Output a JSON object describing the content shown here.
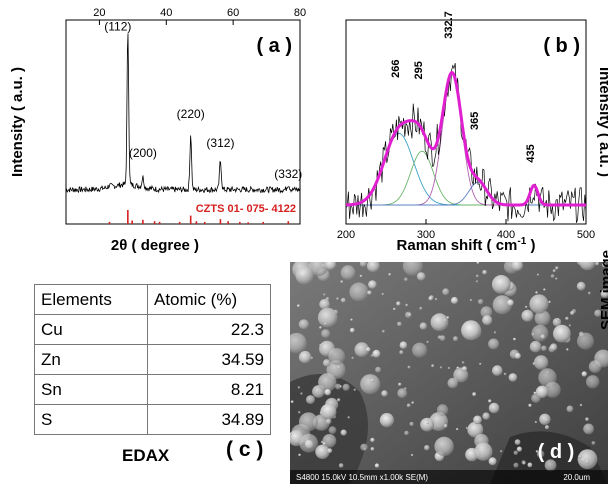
{
  "panel_a": {
    "label": "( a )",
    "ylabel": "Intensity ( a.u. )",
    "xlabel": "2θ ( degree )",
    "xticks": [
      "20",
      "40",
      "60",
      "80"
    ],
    "peaks": [
      "(112)",
      "(200)",
      "(220)",
      "(312)",
      "(332)"
    ],
    "reference_label": "CZTS 01- 075- 4122",
    "reference_color": "#d62020"
  },
  "panel_b": {
    "label": "( b )",
    "ylabel": "Intensity ( a.u. )",
    "xlabel_main": "Raman shift ( cm",
    "xlabel_sup": "-1",
    "xlabel_end": " )",
    "xticks": [
      "200",
      "300",
      "400",
      "500"
    ],
    "peaks": [
      "266",
      "295",
      "332.7",
      "365",
      "435"
    ],
    "fit_color": "#e020d0"
  },
  "panel_c": {
    "headers": [
      "Elements",
      "Atomic (%)"
    ],
    "rows": [
      {
        "element": "Cu",
        "value": "22.3"
      },
      {
        "element": "Zn",
        "value": "34.59"
      },
      {
        "element": "Sn",
        "value": "8.21"
      },
      {
        "element": "S",
        "value": "34.89"
      }
    ],
    "caption": "EDAX",
    "label": "( c )"
  },
  "panel_d": {
    "label": "( d )",
    "side_label": "SEM image",
    "footer": "S4800 15.0kV 10.5mm x1.00k SE(M)",
    "scale": "20.0um"
  },
  "chart_data": [
    {
      "type": "line",
      "title": "( a )",
      "xlabel": "2θ ( degree )",
      "ylabel": "Intensity ( a.u. )",
      "xlim": [
        10,
        80
      ],
      "x": [
        15,
        20,
        26,
        28.5,
        30,
        33,
        40,
        47.3,
        50,
        56.2,
        60,
        70,
        76.5,
        80
      ],
      "series": [
        {
          "values": [
            0.04,
            0.05,
            0.08,
            0.95,
            0.12,
            0.09,
            0.05,
            0.38,
            0.06,
            0.22,
            0.05,
            0.04,
            0.06,
            0.04
          ]
        }
      ],
      "annotations": [
        {
          "text": "(112)",
          "x": 28.5
        },
        {
          "text": "(200)",
          "x": 33
        },
        {
          "text": "(220)",
          "x": 47.3
        },
        {
          "text": "(312)",
          "x": 56.2
        },
        {
          "text": "(332)",
          "x": 76.5
        }
      ],
      "reference_lines": {
        "name": "CZTS 01- 075- 4122",
        "x": [
          23,
          28.5,
          29.8,
          33,
          36.5,
          38,
          44,
          47.3,
          49,
          51.5,
          56.2,
          58.5,
          62,
          64.5,
          69,
          76.5
        ],
        "intensity": [
          0.15,
          1.0,
          0.25,
          0.3,
          0.2,
          0.15,
          0.15,
          0.6,
          0.2,
          0.15,
          0.35,
          0.2,
          0.15,
          0.12,
          0.15,
          0.2
        ]
      },
      "grid": false
    },
    {
      "type": "line",
      "title": "( b )",
      "xlabel": "Raman shift ( cm-1 )",
      "ylabel": "Intensity ( a.u. )",
      "xlim": [
        200,
        500
      ],
      "x": [
        200,
        220,
        240,
        260,
        266,
        280,
        295,
        310,
        320,
        332.7,
        340,
        350,
        365,
        380,
        400,
        420,
        435,
        450,
        470,
        500
      ],
      "series": [
        {
          "values": [
            0.02,
            0.18,
            0.42,
            0.58,
            0.6,
            0.6,
            0.53,
            0.6,
            0.78,
            1.0,
            0.85,
            0.48,
            0.22,
            0.06,
            0.02,
            0.02,
            0.12,
            0.02,
            0.01,
            0.0
          ]
        }
      ],
      "annotations": [
        {
          "text": "266",
          "x": 266
        },
        {
          "text": "295",
          "x": 295
        },
        {
          "text": "332.7",
          "x": 332.7
        },
        {
          "text": "365",
          "x": 365
        },
        {
          "text": "435",
          "x": 435
        }
      ],
      "grid": false
    },
    {
      "type": "table",
      "columns": [
        "Elements",
        "Atomic (%)"
      ],
      "rows": [
        [
          "Cu",
          22.3
        ],
        [
          "Zn",
          34.59
        ],
        [
          "Sn",
          8.21
        ],
        [
          "S",
          34.89
        ]
      ]
    }
  ]
}
